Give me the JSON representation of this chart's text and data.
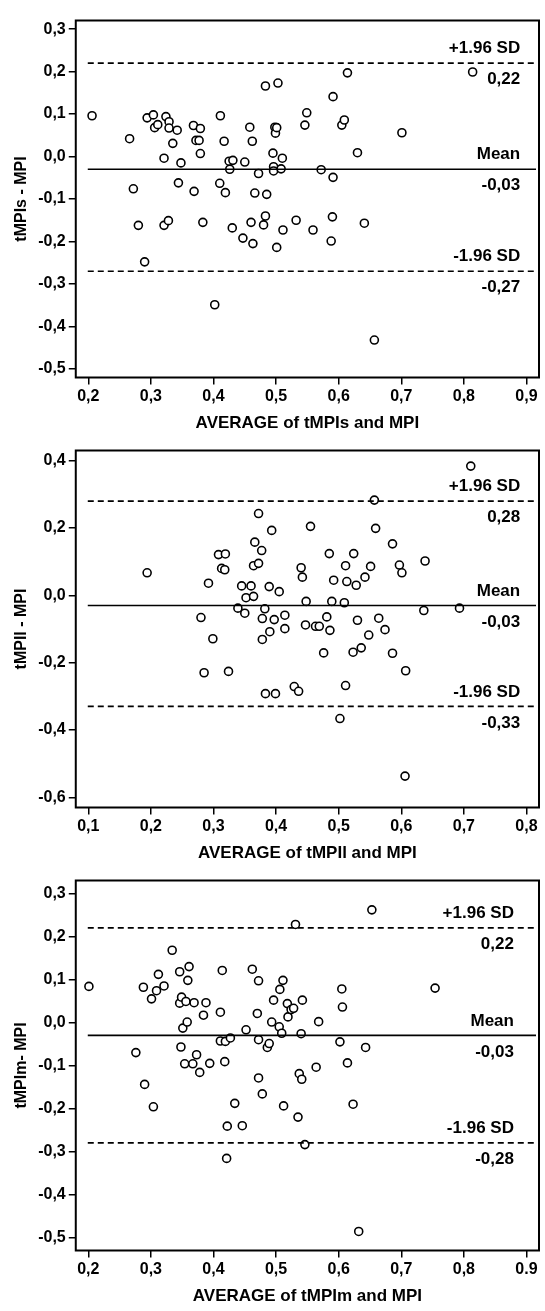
{
  "chart_data": [
    {
      "type": "scatter",
      "xlabel": "AVERAGE of tMPIs and MPI",
      "ylabel": "tMPIs - MPI",
      "marker": "circle",
      "grid": false,
      "xlim": [
        0.18,
        0.92
      ],
      "ylim": [
        -0.52,
        0.32
      ],
      "xticks": [
        {
          "value": 0.2,
          "label": "0,2"
        },
        {
          "value": 0.3,
          "label": "0,3"
        },
        {
          "value": 0.4,
          "label": "0,4"
        },
        {
          "value": 0.5,
          "label": "0,5"
        },
        {
          "value": 0.6,
          "label": "0,6"
        },
        {
          "value": 0.7,
          "label": "0,7"
        },
        {
          "value": 0.8,
          "label": "0,8"
        },
        {
          "value": 0.9,
          "label": "0,9"
        }
      ],
      "yticks": [
        {
          "value": -0.5,
          "label": "-0,5"
        },
        {
          "value": -0.4,
          "label": "-0,4"
        },
        {
          "value": -0.3,
          "label": "-0,3"
        },
        {
          "value": -0.2,
          "label": "-0,2"
        },
        {
          "value": -0.1,
          "label": "-0,1"
        },
        {
          "value": 0,
          "label": "0,0"
        },
        {
          "value": 0.1,
          "label": "0,1"
        },
        {
          "value": 0.2,
          "label": "0,2"
        },
        {
          "value": 0.3,
          "label": "0,3"
        }
      ],
      "series": [
        {
          "color": "#000000",
          "x": [
            0.206,
            0.266,
            0.272,
            0.28,
            0.29,
            0.294,
            0.304,
            0.306,
            0.311,
            0.321,
            0.321,
            0.324,
            0.328,
            0.329,
            0.329,
            0.335,
            0.342,
            0.344,
            0.348,
            0.368,
            0.369,
            0.372,
            0.377,
            0.379,
            0.379,
            0.383,
            0.402,
            0.41,
            0.411,
            0.417,
            0.419,
            0.425,
            0.426,
            0.43,
            0.431,
            0.447,
            0.45,
            0.458,
            0.46,
            0.462,
            0.463,
            0.466,
            0.472,
            0.48,
            0.483,
            0.483,
            0.485,
            0.495,
            0.496,
            0.496,
            0.498,
            0.499,
            0.501,
            0.501,
            0.503,
            0.508,
            0.51,
            0.511,
            0.532,
            0.546,
            0.549,
            0.559,
            0.572,
            0.588,
            0.59,
            0.591,
            0.591,
            0.605,
            0.609,
            0.614,
            0.63,
            0.641,
            0.657,
            0.701,
            0.814
          ],
          "values": [
            0.096,
            0.042,
            -0.076,
            -0.162,
            -0.248,
            0.091,
            0.098,
            0.068,
            0.075,
            -0.004,
            -0.162,
            0.094,
            -0.151,
            0.082,
            0.067,
            0.031,
            0.062,
            -0.062,
            -0.015,
            0.073,
            -0.082,
            0.038,
            0.038,
            0.066,
            0.007,
            -0.155,
            -0.349,
            -0.063,
            0.096,
            0.036,
            -0.085,
            -0.011,
            -0.03,
            -0.168,
            -0.009,
            -0.192,
            -0.013,
            0.069,
            -0.155,
            0.036,
            -0.205,
            -0.086,
            -0.04,
            -0.161,
            0.166,
            -0.14,
            -0.089,
            0.008,
            -0.024,
            -0.034,
            0.069,
            0.055,
            0.068,
            -0.214,
            0.173,
            -0.029,
            -0.004,
            -0.173,
            -0.15,
            0.074,
            0.103,
            -0.173,
            -0.031,
            -0.199,
            -0.142,
            -0.049,
            0.141,
            0.074,
            0.086,
            0.197,
            0.009,
            -0.157,
            -0.432,
            0.056,
            0.199
          ]
        }
      ],
      "ref_lines": [
        {
          "axis": "y",
          "value": 0.22,
          "label": "+1.96 SD",
          "line_style": "dashed",
          "color": "#000000"
        },
        {
          "axis": "y",
          "value": -0.03,
          "label": "Mean",
          "line_style": "solid",
          "color": "#000000"
        },
        {
          "axis": "y",
          "value": -0.27,
          "label": "-1.96 SD",
          "line_style": "dashed",
          "color": "#000000"
        }
      ],
      "annotations": [
        {
          "text": "0,22",
          "x": 0.89,
          "y": 0.22
        },
        {
          "text": "-0,03",
          "x": 0.89,
          "y": -0.03
        },
        {
          "text": "-0,27",
          "x": 0.89,
          "y": -0.27
        }
      ]
    },
    {
      "type": "scatter",
      "xlabel": "AVERAGE of tMPIl and MPI",
      "ylabel": "tMPIl - MPI",
      "marker": "circle",
      "grid": false,
      "xlim": [
        0.08,
        0.82
      ],
      "ylim": [
        -0.63,
        0.43
      ],
      "xticks": [
        {
          "value": 0.1,
          "label": "0,1"
        },
        {
          "value": 0.2,
          "label": "0,2"
        },
        {
          "value": 0.3,
          "label": "0,3"
        },
        {
          "value": 0.4,
          "label": "0,4"
        },
        {
          "value": 0.5,
          "label": "0,5"
        },
        {
          "value": 0.6,
          "label": "0,6"
        },
        {
          "value": 0.7,
          "label": "0,7"
        },
        {
          "value": 0.8,
          "label": "0,8"
        }
      ],
      "yticks": [
        {
          "value": -0.6,
          "label": "-0,6"
        },
        {
          "value": -0.4,
          "label": "-0,4"
        },
        {
          "value": -0.2,
          "label": "-0,2"
        },
        {
          "value": 0,
          "label": "0,0"
        },
        {
          "value": 0.2,
          "label": "0,2"
        },
        {
          "value": 0.4,
          "label": "0,4"
        }
      ],
      "series": [
        {
          "color": "#000000",
          "x": [
            0.194,
            0.28,
            0.285,
            0.292,
            0.299,
            0.308,
            0.313,
            0.318,
            0.319,
            0.324,
            0.339,
            0.345,
            0.35,
            0.352,
            0.36,
            0.364,
            0.364,
            0.366,
            0.372,
            0.372,
            0.377,
            0.378,
            0.378,
            0.382,
            0.383,
            0.389,
            0.39,
            0.393,
            0.397,
            0.399,
            0.405,
            0.414,
            0.414,
            0.429,
            0.436,
            0.44,
            0.442,
            0.447,
            0.448,
            0.455,
            0.463,
            0.469,
            0.476,
            0.481,
            0.485,
            0.486,
            0.489,
            0.492,
            0.502,
            0.509,
            0.511,
            0.511,
            0.513,
            0.523,
            0.524,
            0.528,
            0.53,
            0.536,
            0.542,
            0.548,
            0.551,
            0.557,
            0.559,
            0.564,
            0.574,
            0.586,
            0.586,
            0.597,
            0.601,
            0.606,
            0.607,
            0.636,
            0.638,
            0.693,
            0.711
          ],
          "values": [
            0.067,
            -0.066,
            -0.23,
            0.036,
            -0.129,
            0.121,
            0.08,
            0.076,
            0.123,
            -0.226,
            -0.038,
            0.028,
            -0.053,
            -0.007,
            0.028,
            -0.003,
            0.088,
            0.158,
            0.095,
            0.243,
            0.133,
            -0.069,
            -0.131,
            -0.04,
            -0.292,
            0.026,
            -0.108,
            0.193,
            -0.072,
            -0.292,
            0.011,
            -0.059,
            -0.099,
            -0.271,
            -0.285,
            0.082,
            0.054,
            -0.088,
            -0.018,
            0.205,
            -0.092,
            -0.092,
            -0.171,
            -0.064,
            0.124,
            -0.104,
            -0.018,
            0.045,
            -0.366,
            -0.022,
            0.088,
            -0.268,
            0.041,
            -0.169,
            0.124,
            0.03,
            -0.074,
            -0.156,
            0.054,
            -0.118,
            0.086,
            0.283,
            0.199,
            -0.068,
            -0.102,
            0.153,
            -0.172,
            0.09,
            0.067,
            -0.537,
            -0.224,
            -0.045,
            0.102,
            -0.038,
            0.384
          ]
        }
      ],
      "ref_lines": [
        {
          "axis": "y",
          "value": 0.28,
          "label": "+1.96 SD",
          "line_style": "dashed",
          "color": "#000000"
        },
        {
          "axis": "y",
          "value": -0.03,
          "label": "Mean",
          "line_style": "solid",
          "color": "#000000"
        },
        {
          "axis": "y",
          "value": -0.33,
          "label": "-1.96 SD",
          "line_style": "dashed",
          "color": "#000000"
        }
      ],
      "annotations": [
        {
          "text": "0,28",
          "x": 0.79,
          "y": 0.28
        },
        {
          "text": "-0,03",
          "x": 0.79,
          "y": -0.03
        },
        {
          "text": "-0,33",
          "x": 0.79,
          "y": -0.33
        }
      ]
    },
    {
      "type": "scatter",
      "xlabel": "AVERAGE of tMPIm and MPI",
      "ylabel": "tMPIm- MPI",
      "marker": "circle",
      "grid": false,
      "xlim": [
        0.18,
        0.92
      ],
      "ylim": [
        -0.53,
        0.33
      ],
      "xticks": [
        {
          "value": 0.2,
          "label": "0,2"
        },
        {
          "value": 0.3,
          "label": "0,3"
        },
        {
          "value": 0.4,
          "label": "0,4"
        },
        {
          "value": 0.5,
          "label": "0,5"
        },
        {
          "value": 0.6,
          "label": "0,6"
        },
        {
          "value": 0.7,
          "label": "0,7"
        },
        {
          "value": 0.8,
          "label": "0,8"
        },
        {
          "value": 0.9,
          "label": "0.9"
        }
      ],
      "yticks": [
        {
          "value": -0.5,
          "label": "-0,5"
        },
        {
          "value": -0.4,
          "label": "-0,4"
        },
        {
          "value": -0.3,
          "label": "-0,3"
        },
        {
          "value": -0.2,
          "label": "-0,2"
        },
        {
          "value": -0.1,
          "label": "-0,1"
        },
        {
          "value": 0,
          "label": "0,0"
        },
        {
          "value": 0.1,
          "label": "0,1"
        },
        {
          "value": 0.2,
          "label": "0,2"
        },
        {
          "value": 0.3,
          "label": "0,3"
        }
      ],
      "series": [
        {
          "color": "#000000",
          "x": [
            0.201,
            0.276,
            0.288,
            0.29,
            0.301,
            0.304,
            0.309,
            0.312,
            0.321,
            0.334,
            0.346,
            0.346,
            0.348,
            0.349,
            0.351,
            0.354,
            0.356,
            0.358,
            0.359,
            0.361,
            0.367,
            0.369,
            0.373,
            0.378,
            0.384,
            0.388,
            0.394,
            0.411,
            0.411,
            0.414,
            0.418,
            0.419,
            0.421,
            0.422,
            0.427,
            0.434,
            0.446,
            0.452,
            0.462,
            0.47,
            0.472,
            0.472,
            0.472,
            0.478,
            0.486,
            0.489,
            0.493,
            0.496,
            0.505,
            0.506,
            0.509,
            0.511,
            0.512,
            0.518,
            0.519,
            0.524,
            0.528,
            0.531,
            0.535,
            0.537,
            0.54,
            0.541,
            0.542,
            0.546,
            0.564,
            0.568,
            0.602,
            0.605,
            0.606,
            0.614,
            0.623,
            0.632,
            0.643,
            0.653,
            0.754
          ],
          "values": [
            0.084,
            -0.07,
            0.082,
            -0.144,
            0.055,
            -0.196,
            0.074,
            0.112,
            0.085,
            0.168,
            0.118,
            0.045,
            -0.057,
            0.059,
            -0.013,
            -0.096,
            0.049,
            0.001,
            0.098,
            0.13,
            -0.096,
            0.046,
            -0.075,
            -0.116,
            0.017,
            0.046,
            -0.095,
            0.024,
            -0.043,
            0.121,
            -0.091,
            -0.044,
            -0.316,
            -0.241,
            -0.036,
            -0.188,
            -0.24,
            -0.017,
            0.124,
            0.021,
            -0.04,
            0.097,
            -0.129,
            -0.166,
            -0.058,
            -0.049,
            0.001,
            0.052,
            -0.01,
            0.077,
            -0.025,
            0.098,
            -0.194,
            0.044,
            0.013,
            0.03,
            0.033,
            0.228,
            -0.22,
            -0.119,
            -0.026,
            -0.132,
            0.052,
            -0.284,
            -0.104,
            0.002,
            -0.045,
            0.078,
            0.036,
            -0.094,
            -0.19,
            -0.486,
            -0.058,
            0.262,
            0.08
          ]
        }
      ],
      "ref_lines": [
        {
          "axis": "y",
          "value": 0.22,
          "label": "+1.96 SD",
          "line_style": "dashed",
          "color": "#000000"
        },
        {
          "axis": "y",
          "value": -0.03,
          "label": "Mean",
          "line_style": "solid",
          "color": "#000000"
        },
        {
          "axis": "y",
          "value": -0.28,
          "label": "-1.96 SD",
          "line_style": "dashed",
          "color": "#000000"
        }
      ],
      "annotations": [
        {
          "text": "0,22",
          "x": 0.88,
          "y": 0.22
        },
        {
          "text": "-0,03",
          "x": 0.88,
          "y": -0.03
        },
        {
          "text": "-0,28",
          "x": 0.88,
          "y": -0.28
        }
      ]
    }
  ]
}
